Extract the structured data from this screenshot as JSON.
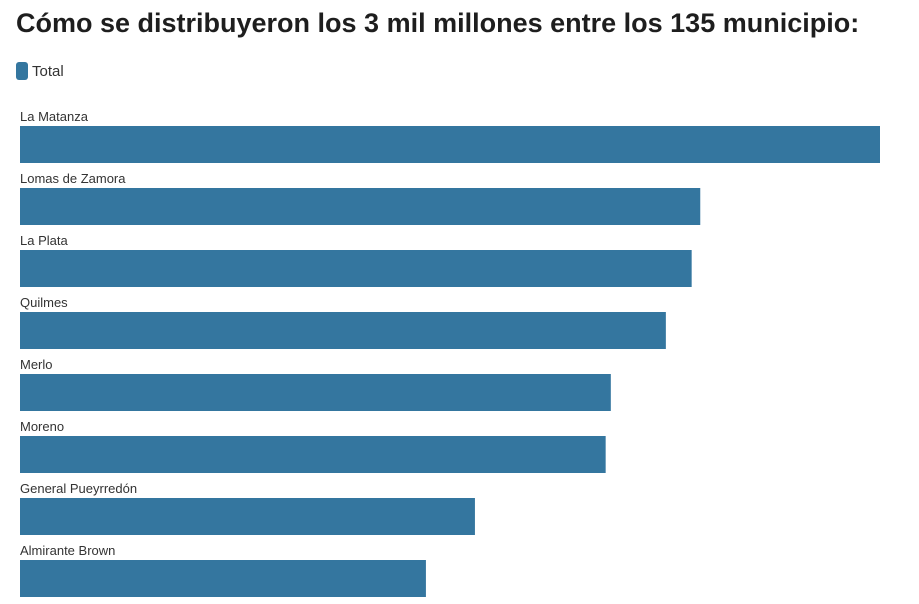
{
  "chart_data": {
    "type": "bar",
    "orientation": "horizontal",
    "title": "Cómo se distribuyeron los 3 mil millones entre los 135 municipio:",
    "categories": [
      "La Matanza",
      "Lomas de Zamora",
      "La Plata",
      "Quilmes",
      "Merlo",
      "Moreno",
      "General Pueyrredón",
      "Almirante Brown"
    ],
    "series": [
      {
        "name": "Total",
        "values": [
          100,
          79.1,
          78.1,
          75.1,
          68.7,
          68.1,
          52.9,
          47.2
        ]
      }
    ],
    "xlim": [
      0,
      100
    ],
    "grid": false,
    "legend": "top-left",
    "colors": {
      "bar": "#34769f",
      "text": "#333333",
      "title": "#1e1e1e"
    }
  }
}
